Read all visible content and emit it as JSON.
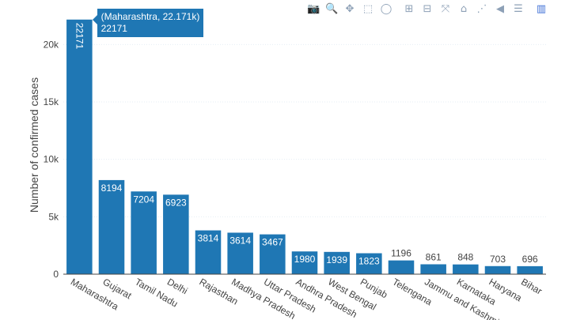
{
  "chart_data": {
    "type": "bar",
    "categories": [
      "Maharashtra",
      "Gujarat",
      "Tamil Nadu",
      "Delhi",
      "Rajasthan",
      "Madhya Pradesh",
      "Uttar Pradesh",
      "Andhra Pradesh",
      "West Bengal",
      "Punjab",
      "Telengana",
      "Jammu and Kashmir",
      "Karnataka",
      "Haryana",
      "Bihar"
    ],
    "values": [
      22171,
      8194,
      7204,
      6923,
      3814,
      3614,
      3467,
      1980,
      1939,
      1823,
      1196,
      861,
      848,
      703,
      696
    ],
    "ylabel": "Number of confirmed cases",
    "xlabel": "",
    "ylim": [
      0,
      22500
    ],
    "yticks": [
      0,
      5000,
      10000,
      15000,
      20000
    ],
    "ytick_labels": [
      "0",
      "5k",
      "10k",
      "15k",
      "20k"
    ],
    "grid": "horizontal",
    "bar_color": "#1f77b4",
    "tick_label_rotation_deg": 30,
    "text_inside_color": "#ffffff",
    "text_outside_color": "#444444"
  },
  "hover": {
    "category_index": 0,
    "line1": "(Maharashtra, 22.171k)",
    "line2": "22171"
  },
  "modebar": {
    "buttons": [
      {
        "name": "camera-icon",
        "glyph": "📷"
      },
      {
        "name": "zoom-icon",
        "glyph": "🔍"
      },
      {
        "name": "pan-icon",
        "glyph": "✥"
      },
      {
        "name": "box-select-icon",
        "glyph": "⬚"
      },
      {
        "name": "lasso-select-icon",
        "glyph": "◯"
      },
      {
        "name": "zoom-in-icon",
        "glyph": "⊞"
      },
      {
        "name": "zoom-out-icon",
        "glyph": "⊟"
      },
      {
        "name": "autoscale-icon",
        "glyph": "⤧"
      },
      {
        "name": "reset-axes-icon",
        "glyph": "⌂"
      },
      {
        "name": "spike-lines-icon",
        "glyph": "⋰"
      },
      {
        "name": "hover-closest-icon",
        "glyph": "◀"
      },
      {
        "name": "hover-compare-icon",
        "glyph": "☰"
      },
      {
        "name": "plotly-logo-icon",
        "glyph": "▥"
      }
    ]
  }
}
